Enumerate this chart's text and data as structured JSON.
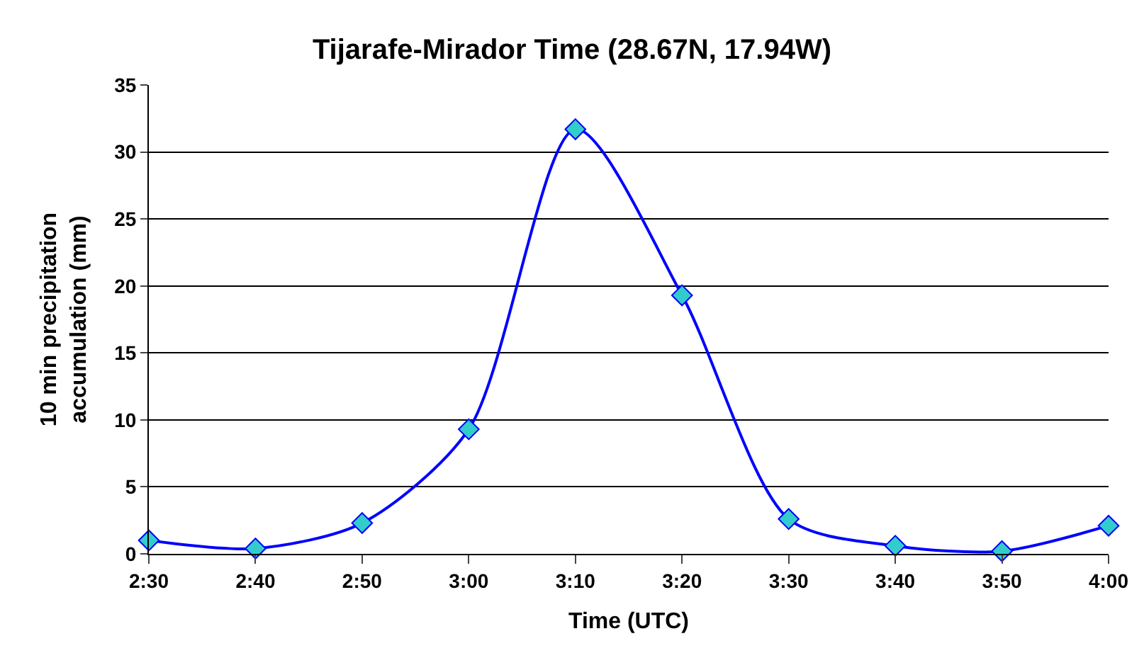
{
  "chart_data": {
    "type": "line",
    "title": "Tijarafe-Mirador Time (28.67N, 17.94W)",
    "xlabel": "Time (UTC)",
    "ylabel": "10 min precipitation\naccumulation (mm)",
    "categories": [
      "2:30",
      "2:40",
      "2:50",
      "3:00",
      "3:10",
      "3:20",
      "3:30",
      "3:40",
      "3:50",
      "4:00"
    ],
    "series": [
      {
        "color": "#0000ff",
        "colors": [
          "#33cccc",
          "#33cccc",
          "#33cccc",
          "#33cccc",
          "#33cccc",
          "#33cccc",
          "#33cccc",
          "#33cccc",
          "#33cccc",
          "#33cccc"
        ],
        "values": [
          1.0,
          0.4,
          2.3,
          9.3,
          31.7,
          19.3,
          2.6,
          0.6,
          0.2,
          2.1
        ]
      }
    ],
    "ylim": [
      0,
      35
    ],
    "yticks": [
      0,
      5,
      10,
      15,
      20,
      25,
      30,
      35
    ],
    "grid": "y",
    "legend": false,
    "marker": "diamond",
    "line_style": "solid"
  }
}
